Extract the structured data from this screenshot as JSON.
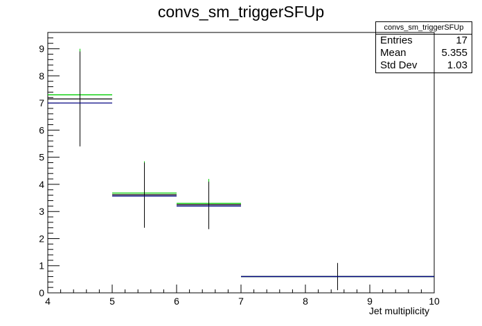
{
  "chart_data": {
    "type": "histogram",
    "title": "convs_sm_triggerSFUp",
    "xlabel": "Jet multiplicity",
    "ylabel": "",
    "xlim": [
      4,
      10
    ],
    "ylim": [
      0,
      9.6
    ],
    "x_ticks": [
      "4",
      "5",
      "6",
      "7",
      "8",
      "9",
      "10"
    ],
    "y_ticks": [
      "0",
      "1",
      "2",
      "3",
      "4",
      "5",
      "6",
      "7",
      "8",
      "9"
    ],
    "grid": false,
    "stats_box": {
      "name": "convs_sm_triggerSFUp",
      "entries_label": "Entries",
      "entries": "17",
      "mean_label": "Mean",
      "mean": "5.355",
      "stddev_label": "Std Dev",
      "stddev": "1.03"
    },
    "series": [
      {
        "color": "#00cc00",
        "bins": [
          {
            "x0": 4,
            "x1": 5,
            "y": 7.3,
            "err_hi": 9.0
          },
          {
            "x0": 5,
            "x1": 6,
            "y": 3.68,
            "err_hi": 4.85
          },
          {
            "x0": 6,
            "x1": 7,
            "y": 3.3,
            "err_hi": 4.2
          },
          {
            "x0": 7,
            "x1": 10,
            "y": 0.6
          }
        ]
      },
      {
        "color": "#000000",
        "bins": [
          {
            "x0": 4,
            "x1": 5,
            "y": 7.15,
            "err_lo": 5.4,
            "err_hi": 8.9
          },
          {
            "x0": 5,
            "x1": 6,
            "y": 3.62,
            "err_lo": 2.4,
            "err_hi": 4.8
          },
          {
            "x0": 6,
            "x1": 7,
            "y": 3.25,
            "err_lo": 2.35,
            "err_hi": 4.1
          },
          {
            "x0": 7,
            "x1": 10,
            "y": 0.6,
            "err_lo": 0.1,
            "err_hi": 1.1
          }
        ]
      },
      {
        "color": "#000080",
        "bins": [
          {
            "x0": 4,
            "x1": 5,
            "y": 7.0
          },
          {
            "x0": 5,
            "x1": 6,
            "y": 3.57
          },
          {
            "x0": 6,
            "x1": 7,
            "y": 3.2
          },
          {
            "x0": 7,
            "x1": 10,
            "y": 0.6
          }
        ]
      }
    ]
  }
}
